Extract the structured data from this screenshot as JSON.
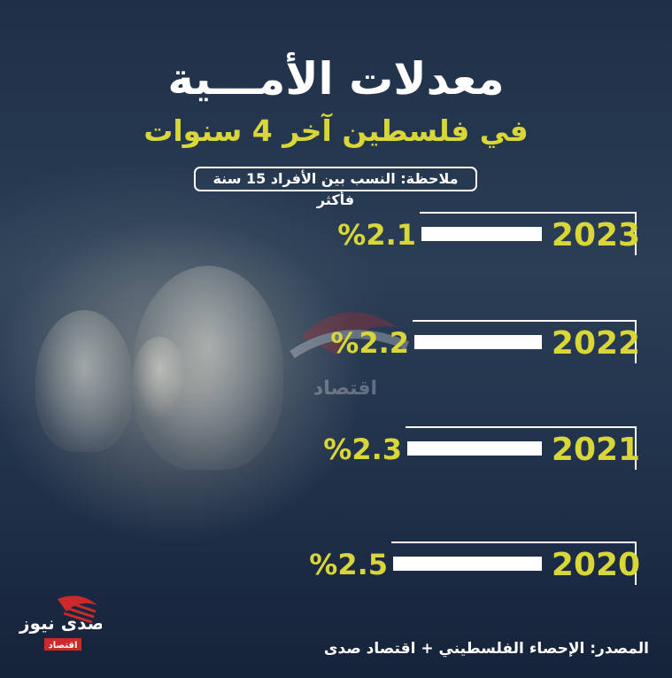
{
  "header": {
    "title": "معدلات الأمـــية",
    "subtitle": "في فلسطين آخر 4 سنوات",
    "note": "ملاحظة: النسب بين الأفراد 15 سنة فأكثر"
  },
  "chart_data": {
    "type": "bar",
    "orientation": "horizontal",
    "categories": [
      "2023",
      "2022",
      "2021",
      "2020"
    ],
    "values": [
      2.1,
      2.2,
      2.3,
      2.5
    ],
    "value_labels": [
      "%2.1",
      "%2.2",
      "%2.3",
      "%2.5"
    ],
    "title": "معدلات الأمـــية",
    "subtitle": "في فلسطين آخر 4 سنوات",
    "grid": false
  },
  "footer": {
    "source": "المصدر: الإحصاء الفلسطيني + اقتصاد صدى"
  },
  "logo": {
    "brand": "صدى نيوز",
    "sub": "اقتصاد"
  },
  "watermark": {
    "text": "اقتصاد"
  },
  "colors": {
    "accent": "#d9d638",
    "bar": "#ffffff",
    "background": "#1b2c45"
  }
}
